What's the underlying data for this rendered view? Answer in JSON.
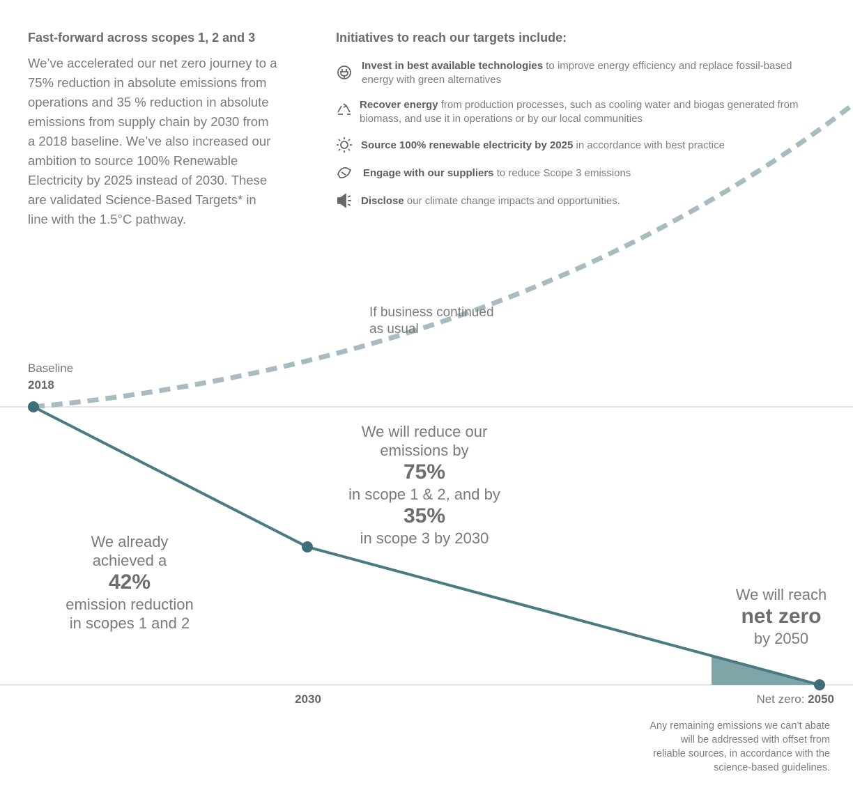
{
  "left": {
    "heading": "Fast-forward across scopes 1, 2 and 3",
    "body": "We’ve accelerated our net zero journey to a 75% reduction in absolute emissions from operations and 35 % reduction in absolute emissions from supply chain by 2030 from a 2018 baseline. We’ve also increased our ambition to source 100% Renewable Electricity by 2025 instead of 2030. These are validated Science-Based Targets* in line with the 1.5°C pathway."
  },
  "initiatives": {
    "heading": "Initiatives to reach our targets include:",
    "items": [
      {
        "bold": "Invest in best available technologies",
        "text": "to improve energy efficiency and replace fossil-based energy with green alternatives"
      },
      {
        "bold": "Recover energy",
        "text": "from production processes, such as cooling water and biogas generated from biomass, and use it in operations or by our local communities"
      },
      {
        "bold": "Source 100% renewable electricity by 2025",
        "text": "in accordance with best practice"
      },
      {
        "bold": "Engage with our suppliers",
        "text": "to reduce Scope 3 emissions"
      },
      {
        "bold": "Disclose",
        "text": "our climate change impacts and opportunities."
      }
    ]
  },
  "chart": {
    "bau_label": [
      "If business continued",
      "as usual"
    ],
    "baseline": {
      "label": "Baseline",
      "year": "2018"
    },
    "milestone": "2030",
    "end": {
      "label": "Net zero:",
      "year": "2050"
    },
    "achieved": {
      "lines_before": [
        "We already",
        "achieved a"
      ],
      "figure": "42%",
      "lines_after": [
        "emission reduction",
        "in scopes 1 and 2"
      ]
    },
    "target": {
      "lines_a": [
        "We will reduce our",
        "emissions by"
      ],
      "figure1": "75%",
      "line_b": "in scope 1 & 2, and by",
      "figure2": "35%",
      "line_c": "in scope 3 by 2030"
    },
    "net_zero": {
      "line1": "We will reach",
      "figure": "net zero",
      "line2": "by 2050"
    },
    "footnote": [
      "Any remaining emissions we can’t abate",
      "will be addressed with offset from",
      "reliable sources, in accordance with the",
      "science-based guidelines."
    ]
  }
}
